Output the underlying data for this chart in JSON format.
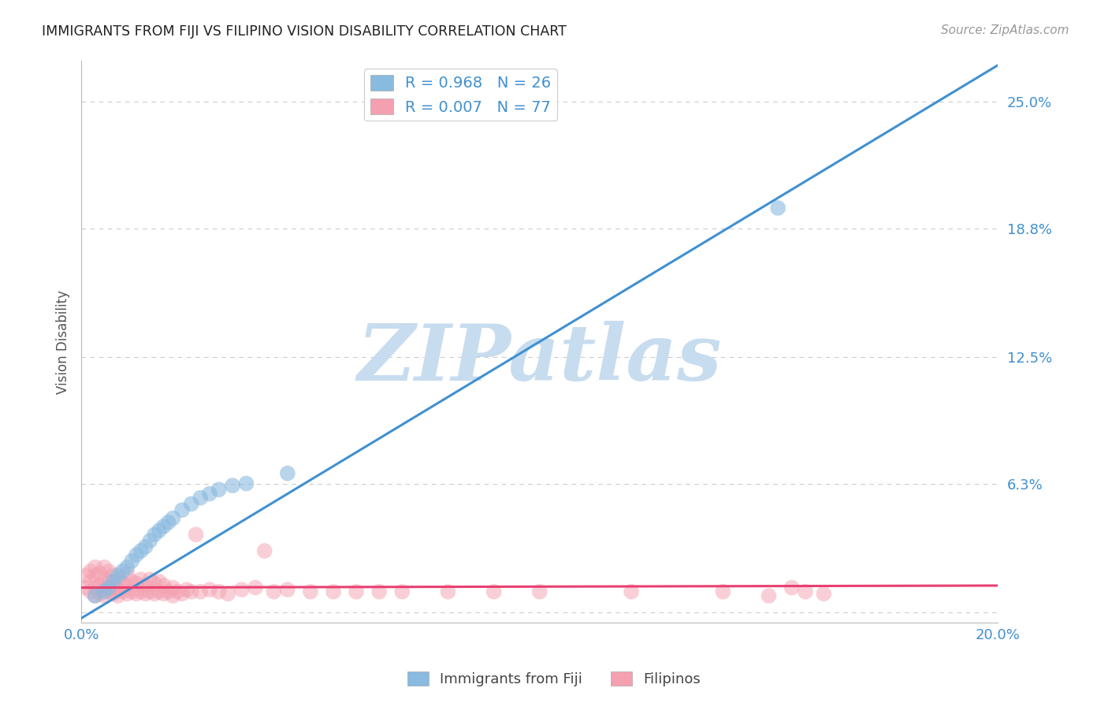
{
  "title": "IMMIGRANTS FROM FIJI VS FILIPINO VISION DISABILITY CORRELATION CHART",
  "source": "Source: ZipAtlas.com",
  "ylabel": "Vision Disability",
  "xlim": [
    0.0,
    0.2
  ],
  "ylim": [
    -0.005,
    0.27
  ],
  "yticks": [
    0.0,
    0.063,
    0.125,
    0.188,
    0.25
  ],
  "ytick_labels": [
    "",
    "6.3%",
    "12.5%",
    "18.8%",
    "25.0%"
  ],
  "xticks": [
    0.0,
    0.05,
    0.1,
    0.15,
    0.2
  ],
  "xtick_labels": [
    "0.0%",
    "",
    "",
    "",
    "20.0%"
  ],
  "fiji_R": 0.968,
  "fiji_N": 26,
  "filipino_R": 0.007,
  "filipino_N": 77,
  "fiji_color": "#89BAE0",
  "filipino_color": "#F4A0B0",
  "fiji_line_color": "#4090D0",
  "filipino_line_color": "#E84070",
  "fiji_line_x0": 0.0,
  "fiji_line_y0": -0.003,
  "fiji_line_x1": 0.2,
  "fiji_line_y1": 0.268,
  "filipino_line_x0": 0.0,
  "filipino_line_y0": 0.012,
  "filipino_line_x1": 0.2,
  "filipino_line_y1": 0.013,
  "watermark": "ZIPatlas",
  "watermark_color": "#C8DCEF",
  "fiji_scatter_x": [
    0.003,
    0.005,
    0.006,
    0.007,
    0.008,
    0.009,
    0.01,
    0.011,
    0.012,
    0.013,
    0.014,
    0.015,
    0.016,
    0.017,
    0.018,
    0.019,
    0.02,
    0.022,
    0.024,
    0.026,
    0.028,
    0.03,
    0.033,
    0.036,
    0.045,
    0.152
  ],
  "fiji_scatter_y": [
    0.008,
    0.01,
    0.012,
    0.015,
    0.018,
    0.02,
    0.022,
    0.025,
    0.028,
    0.03,
    0.032,
    0.035,
    0.038,
    0.04,
    0.042,
    0.044,
    0.046,
    0.05,
    0.053,
    0.056,
    0.058,
    0.06,
    0.062,
    0.063,
    0.068,
    0.198
  ],
  "filipino_scatter_x": [
    0.001,
    0.001,
    0.002,
    0.002,
    0.002,
    0.003,
    0.003,
    0.003,
    0.003,
    0.004,
    0.004,
    0.004,
    0.005,
    0.005,
    0.005,
    0.005,
    0.006,
    0.006,
    0.006,
    0.007,
    0.007,
    0.007,
    0.008,
    0.008,
    0.008,
    0.009,
    0.009,
    0.01,
    0.01,
    0.01,
    0.011,
    0.011,
    0.012,
    0.012,
    0.013,
    0.013,
    0.014,
    0.014,
    0.015,
    0.015,
    0.016,
    0.016,
    0.017,
    0.017,
    0.018,
    0.018,
    0.019,
    0.02,
    0.02,
    0.021,
    0.022,
    0.023,
    0.024,
    0.025,
    0.026,
    0.028,
    0.03,
    0.032,
    0.035,
    0.038,
    0.04,
    0.042,
    0.045,
    0.05,
    0.055,
    0.06,
    0.065,
    0.07,
    0.08,
    0.09,
    0.1,
    0.12,
    0.14,
    0.15,
    0.155,
    0.158,
    0.162
  ],
  "filipino_scatter_y": [
    0.012,
    0.018,
    0.01,
    0.015,
    0.02,
    0.008,
    0.012,
    0.018,
    0.022,
    0.009,
    0.013,
    0.019,
    0.008,
    0.012,
    0.016,
    0.022,
    0.01,
    0.015,
    0.02,
    0.009,
    0.012,
    0.018,
    0.008,
    0.011,
    0.016,
    0.01,
    0.014,
    0.009,
    0.013,
    0.019,
    0.01,
    0.015,
    0.009,
    0.014,
    0.01,
    0.016,
    0.009,
    0.013,
    0.01,
    0.016,
    0.009,
    0.014,
    0.01,
    0.015,
    0.009,
    0.013,
    0.01,
    0.008,
    0.012,
    0.01,
    0.009,
    0.011,
    0.01,
    0.038,
    0.01,
    0.011,
    0.01,
    0.009,
    0.011,
    0.012,
    0.03,
    0.01,
    0.011,
    0.01,
    0.01,
    0.01,
    0.01,
    0.01,
    0.01,
    0.01,
    0.01,
    0.01,
    0.01,
    0.008,
    0.012,
    0.01,
    0.009
  ]
}
